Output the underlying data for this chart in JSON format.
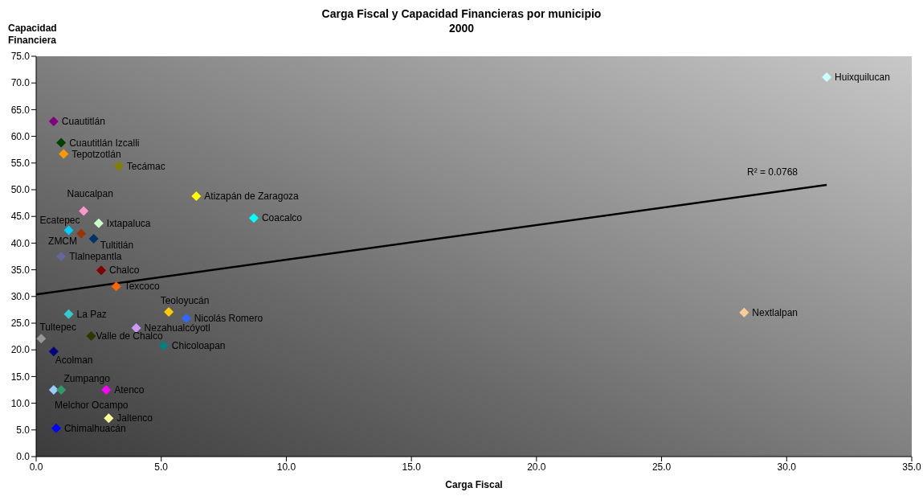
{
  "chart_data": {
    "type": "scatter",
    "title": "Carga Fiscal y Capacidad Financieras por municipio",
    "subtitle": "2000",
    "xlabel": "Carga Fiscal",
    "ylabel": "Capacidad Financiera",
    "marker": "diamond",
    "xlim": [
      0,
      35
    ],
    "xticks": [
      {
        "value": 0,
        "label": "0.0"
      },
      {
        "value": 5,
        "label": "5.0"
      },
      {
        "value": 10,
        "label": "10.0"
      },
      {
        "value": 15,
        "label": "15.0"
      },
      {
        "value": 20,
        "label": "20.0"
      },
      {
        "value": 25,
        "label": "25.0"
      },
      {
        "value": 30,
        "label": "30.0"
      },
      {
        "value": 35,
        "label": "35.0"
      }
    ],
    "ylim": [
      0,
      75
    ],
    "yticks": [
      {
        "value": 0,
        "label": "0.0"
      },
      {
        "value": 5,
        "label": "5.0"
      },
      {
        "value": 10,
        "label": "10.0"
      },
      {
        "value": 15,
        "label": "15.0"
      },
      {
        "value": 20,
        "label": "20.0"
      },
      {
        "value": 25,
        "label": "25.0"
      },
      {
        "value": 30,
        "label": "30.0"
      },
      {
        "value": 35,
        "label": "35.0"
      },
      {
        "value": 40,
        "label": "40.0"
      },
      {
        "value": 45,
        "label": "45.0"
      },
      {
        "value": 50,
        "label": "50.0"
      },
      {
        "value": 55,
        "label": "55.0"
      },
      {
        "value": 60,
        "label": "60.0"
      },
      {
        "value": 65,
        "label": "65.0"
      },
      {
        "value": 70,
        "label": "70.0"
      },
      {
        "value": 75,
        "label": "75.0"
      }
    ],
    "series": [
      {
        "name": "Cuautitlán",
        "color": "#800080",
        "x": [
          0.7
        ],
        "values": [
          62.8
        ]
      },
      {
        "name": "Cuautitlán Izcalli",
        "color": "#004000",
        "x": [
          1.0
        ],
        "values": [
          58.8
        ]
      },
      {
        "name": "Tepotzotlán",
        "color": "#ff9900",
        "x": [
          1.1
        ],
        "values": [
          56.7
        ]
      },
      {
        "name": "Tecámac",
        "color": "#808000",
        "x": [
          3.3
        ],
        "values": [
          54.4
        ]
      },
      {
        "name": "Atizapán de Zaragoza",
        "color": "#ffff00",
        "x": [
          6.4
        ],
        "values": [
          48.8
        ]
      },
      {
        "name": "Naucalpan",
        "color": "#ff99cc",
        "x": [
          1.9
        ],
        "values": [
          46.0
        ]
      },
      {
        "name": "Coacalco",
        "color": "#00ffff",
        "x": [
          8.7
        ],
        "values": [
          44.7
        ]
      },
      {
        "name": "Ixtapaluca",
        "color": "#ccffcc",
        "x": [
          2.5
        ],
        "values": [
          43.7
        ]
      },
      {
        "name": "Ecatepec",
        "color": "#00ccff",
        "x": [
          1.3
        ],
        "values": [
          42.4
        ]
      },
      {
        "name": "ZMCM",
        "color": "#993300",
        "x": [
          1.8
        ],
        "values": [
          41.8
        ]
      },
      {
        "name": "Tultitlán",
        "color": "#003366",
        "x": [
          2.3
        ],
        "values": [
          40.8
        ]
      },
      {
        "name": "Tlalnepantla",
        "color": "#666699",
        "x": [
          1.0
        ],
        "values": [
          37.5
        ]
      },
      {
        "name": "Chalco",
        "color": "#800000",
        "x": [
          2.6
        ],
        "values": [
          34.9
        ]
      },
      {
        "name": "Texcoco",
        "color": "#ff6600",
        "x": [
          3.2
        ],
        "values": [
          31.9
        ]
      },
      {
        "name": "La Paz",
        "color": "#33cccc",
        "x": [
          1.3
        ],
        "values": [
          26.7
        ]
      },
      {
        "name": "Teoloyucán",
        "color": "#ffcc00",
        "x": [
          5.3
        ],
        "values": [
          27.1
        ]
      },
      {
        "name": "Nicolás Romero",
        "color": "#3366ff",
        "x": [
          6.0
        ],
        "values": [
          25.9
        ]
      },
      {
        "name": "Nezahualcóyotl",
        "color": "#cc99ff",
        "x": [
          4.0
        ],
        "values": [
          24.1
        ]
      },
      {
        "name": "Tultepec",
        "color": "#969696",
        "x": [
          0.2
        ],
        "values": [
          22.1
        ]
      },
      {
        "name": "Valle de Chalco",
        "color": "#333300",
        "x": [
          2.2
        ],
        "values": [
          22.6
        ]
      },
      {
        "name": "Chicoloapan",
        "color": "#008080",
        "x": [
          5.1
        ],
        "values": [
          20.8
        ]
      },
      {
        "name": "Acolman",
        "color": "#000080",
        "x": [
          0.7
        ],
        "values": [
          19.7
        ]
      },
      {
        "name": "Melchor Ocampo",
        "color": "#99ccff",
        "x": [
          0.7
        ],
        "values": [
          12.5
        ]
      },
      {
        "name": "Zumpango",
        "color": "#339966",
        "x": [
          1.0
        ],
        "values": [
          12.5
        ]
      },
      {
        "name": "Atenco",
        "color": "#ff00ff",
        "x": [
          2.8
        ],
        "values": [
          12.5
        ]
      },
      {
        "name": "Jaltenco",
        "color": "#ffff99",
        "x": [
          2.9
        ],
        "values": [
          7.2
        ]
      },
      {
        "name": "Chimalhuacán",
        "color": "#0000ff",
        "x": [
          0.8
        ],
        "values": [
          5.3
        ]
      },
      {
        "name": "Huixquilucan",
        "color": "#ccffff",
        "x": [
          31.6
        ],
        "values": [
          71.1
        ]
      },
      {
        "name": "Nextlalpan",
        "color": "#ffcc99",
        "x": [
          28.3
        ],
        "values": [
          27.0
        ]
      },
      {
        "type": "line",
        "marker": "none",
        "color": "#000000",
        "x": [
          0,
          31.6
        ],
        "values": [
          30.4,
          50.9
        ]
      }
    ],
    "annotations": [
      "R² = 0.0768"
    ]
  }
}
